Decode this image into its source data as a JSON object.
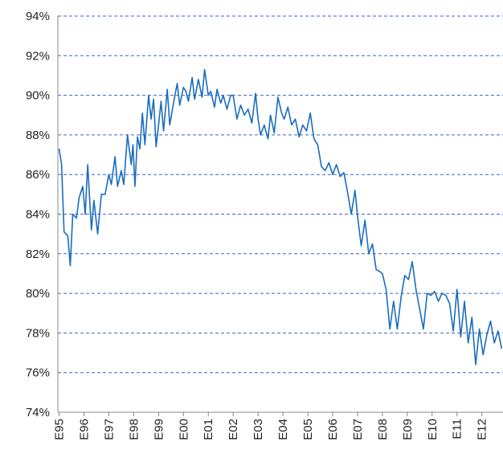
{
  "chart_data": {
    "type": "line",
    "x": [
      1995.0,
      1995.1,
      1995.2,
      1995.35,
      1995.45,
      1995.55,
      1995.7,
      1995.8,
      1995.95,
      1996.05,
      1996.15,
      1996.3,
      1996.4,
      1996.55,
      1996.7,
      1996.85,
      1997.0,
      1997.1,
      1997.25,
      1997.35,
      1997.5,
      1997.6,
      1997.75,
      1997.9,
      1997.97,
      1998.05,
      1998.15,
      1998.25,
      1998.35,
      1998.45,
      1998.6,
      1998.7,
      1998.8,
      1998.9,
      1999.0,
      1999.1,
      1999.2,
      1999.35,
      1999.45,
      1999.6,
      1999.75,
      1999.85,
      2000.0,
      2000.1,
      2000.2,
      2000.35,
      2000.45,
      2000.6,
      2000.75,
      2000.85,
      2001.0,
      2001.1,
      2001.25,
      2001.35,
      2001.5,
      2001.6,
      2001.75,
      2001.9,
      2002.0,
      2002.15,
      2002.3,
      2002.45,
      2002.6,
      2002.75,
      2002.9,
      2003.0,
      2003.1,
      2003.25,
      2003.4,
      2003.5,
      2003.65,
      2003.8,
      2003.95,
      2004.05,
      2004.2,
      2004.35,
      2004.5,
      2004.65,
      2004.8,
      2004.95,
      2005.1,
      2005.25,
      2005.4,
      2005.55,
      2005.7,
      2005.85,
      2006.0,
      2006.15,
      2006.3,
      2006.45,
      2006.6,
      2006.75,
      2006.9,
      2007.0,
      2007.15,
      2007.3,
      2007.45,
      2007.6,
      2007.75,
      2007.9,
      2008.0,
      2008.15,
      2008.3,
      2008.45,
      2008.6,
      2008.75,
      2008.9,
      2009.05,
      2009.2,
      2009.35,
      2009.5,
      2009.65,
      2009.8,
      2009.95,
      2010.1,
      2010.25,
      2010.4,
      2010.55,
      2010.7,
      2010.85,
      2011.0,
      2011.15,
      2011.3,
      2011.45,
      2011.6,
      2011.75,
      2011.9,
      2012.05,
      2012.2,
      2012.35,
      2012.5,
      2012.65,
      2012.8
    ],
    "series": [
      {
        "color": "#1a6dbf",
        "values": [
          87.3,
          86.5,
          83.1,
          82.9,
          81.4,
          84.0,
          83.8,
          84.8,
          85.4,
          84.0,
          86.5,
          83.2,
          84.7,
          83.0,
          85.0,
          85.0,
          86.0,
          85.5,
          86.9,
          85.4,
          86.2,
          85.5,
          88.0,
          86.5,
          87.5,
          85.4,
          87.9,
          87.3,
          89.1,
          87.5,
          90.0,
          88.8,
          89.8,
          87.4,
          88.5,
          89.7,
          88.2,
          90.3,
          88.5,
          89.6,
          90.6,
          89.5,
          90.4,
          90.2,
          89.7,
          90.9,
          89.8,
          90.8,
          89.9,
          91.3,
          90.0,
          90.2,
          89.4,
          90.3,
          89.6,
          90.0,
          89.3,
          90.0,
          90.0,
          88.8,
          89.5,
          89.0,
          89.3,
          88.6,
          90.1,
          88.8,
          88.0,
          88.5,
          87.8,
          89.0,
          88.1,
          89.9,
          89.1,
          88.8,
          89.4,
          88.5,
          88.8,
          87.9,
          88.5,
          88.2,
          89.1,
          87.8,
          87.5,
          86.4,
          86.2,
          86.6,
          86.0,
          86.5,
          85.9,
          86.1,
          85.1,
          84.0,
          85.2,
          83.9,
          82.4,
          83.7,
          82.0,
          82.5,
          81.2,
          81.1,
          81.0,
          80.2,
          78.2,
          79.6,
          78.2,
          79.8,
          80.9,
          80.7,
          81.6,
          80.2,
          79.2,
          78.2,
          80.0,
          79.9,
          80.1,
          79.6,
          80.0,
          79.9,
          79.5,
          78.1,
          80.2,
          77.8,
          79.6,
          77.5,
          78.8,
          76.4,
          78.2,
          76.9,
          77.9,
          78.6,
          77.5,
          78.1,
          77.2
        ]
      }
    ],
    "xlim": [
      1994.95,
      2012.85
    ],
    "xticks": [
      {
        "value": 1995,
        "label": "E95"
      },
      {
        "value": 1996,
        "label": "E96"
      },
      {
        "value": 1997,
        "label": "E97"
      },
      {
        "value": 1998,
        "label": "E98"
      },
      {
        "value": 1999,
        "label": "E99"
      },
      {
        "value": 2000,
        "label": "E00"
      },
      {
        "value": 2001,
        "label": "E01"
      },
      {
        "value": 2002,
        "label": "E02"
      },
      {
        "value": 2003,
        "label": "E03"
      },
      {
        "value": 2004,
        "label": "E04"
      },
      {
        "value": 2005,
        "label": "E05"
      },
      {
        "value": 2006,
        "label": "E06"
      },
      {
        "value": 2007,
        "label": "E07"
      },
      {
        "value": 2008,
        "label": "E08"
      },
      {
        "value": 2009,
        "label": "E09"
      },
      {
        "value": 2010,
        "label": "E10"
      },
      {
        "value": 2011,
        "label": "E11"
      },
      {
        "value": 2012,
        "label": "E12"
      }
    ],
    "ylim": [
      74,
      94
    ],
    "yticks": [
      {
        "value": 74,
        "label": "74%"
      },
      {
        "value": 76,
        "label": "76%"
      },
      {
        "value": 78,
        "label": "78%"
      },
      {
        "value": 80,
        "label": "80%"
      },
      {
        "value": 82,
        "label": "82%"
      },
      {
        "value": 84,
        "label": "84%"
      },
      {
        "value": 86,
        "label": "86%"
      },
      {
        "value": 88,
        "label": "88%"
      },
      {
        "value": 90,
        "label": "90%"
      },
      {
        "value": 92,
        "label": "92%"
      },
      {
        "value": 94,
        "label": "94%"
      }
    ],
    "grid": true
  }
}
